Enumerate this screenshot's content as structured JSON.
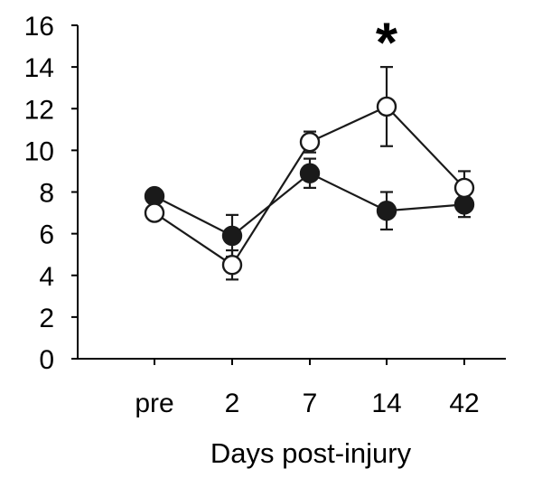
{
  "chart_data": {
    "type": "line",
    "title": "",
    "xlabel": "Days post-injury",
    "ylabel": "",
    "categories": [
      "pre",
      "2",
      "7",
      "14",
      "42"
    ],
    "ylim": [
      0,
      16
    ],
    "yticks": [
      0,
      2,
      4,
      6,
      8,
      10,
      12,
      14,
      16
    ],
    "grid": false,
    "legend": "none",
    "series": [
      {
        "marker": "filled-circle",
        "color": "#1a1a1a",
        "values": [
          7.8,
          5.9,
          8.9,
          7.1,
          7.4
        ],
        "errors": [
          0.3,
          1.0,
          0.7,
          0.9,
          0.6
        ]
      },
      {
        "marker": "open-circle",
        "color": "#1a1a1a",
        "values": [
          7.0,
          4.5,
          10.4,
          12.1,
          8.2
        ],
        "errors": [
          0.3,
          0.7,
          0.5,
          1.9,
          0.8
        ]
      }
    ],
    "annotations": [
      {
        "text": "*",
        "category": "14",
        "y": 15.8
      }
    ]
  }
}
